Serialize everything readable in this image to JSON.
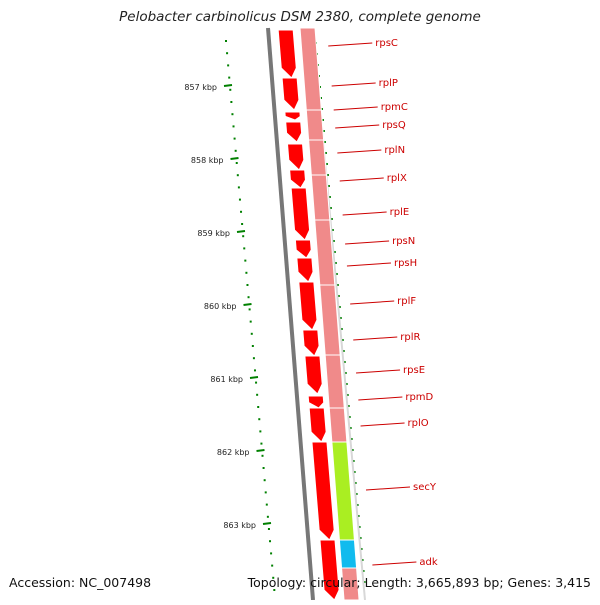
{
  "header": {
    "title": "Pelobacter carbinolicus DSM 2380, complete genome"
  },
  "footer": {
    "accession": "Accession: NC_007498",
    "summary": "Topology: circular; Length: 3,665,893 bp; Genes: 3,415"
  },
  "map": {
    "ruler_ticks": [
      "857 kbp",
      "858 kbp",
      "859 kbp",
      "860 kbp",
      "861 kbp",
      "862 kbp",
      "863 kbp"
    ],
    "genes": [
      {
        "name": "rpsC",
        "color": "#ff0000"
      },
      {
        "name": "rplP",
        "color": "#ff0000"
      },
      {
        "name": "rpmC",
        "color": "#ff0000"
      },
      {
        "name": "rpsQ",
        "color": "#ff0000"
      },
      {
        "name": "rplN",
        "color": "#ff0000"
      },
      {
        "name": "rplX",
        "color": "#ff0000"
      },
      {
        "name": "rplE",
        "color": "#ff0000"
      },
      {
        "name": "rpsN",
        "color": "#ff0000"
      },
      {
        "name": "rpsH",
        "color": "#ff0000"
      },
      {
        "name": "rplF",
        "color": "#ff0000"
      },
      {
        "name": "rplR",
        "color": "#ff0000"
      },
      {
        "name": "rpsE",
        "color": "#ff0000"
      },
      {
        "name": "rpmD",
        "color": "#ff0000"
      },
      {
        "name": "rplO",
        "color": "#ff0000"
      },
      {
        "name": "secY",
        "color": "#ff0000"
      },
      {
        "name": "adk",
        "color": "#ff0000"
      }
    ],
    "colors": {
      "gene_arrow": "#ff0000",
      "cog_band_default": "#f08a8a",
      "cog_band_secY": "#aaee22",
      "cog_band_adk": "#11bbee",
      "label_text": "#cc0000",
      "gc_skew": "#008000",
      "backbone": "#777777"
    }
  }
}
